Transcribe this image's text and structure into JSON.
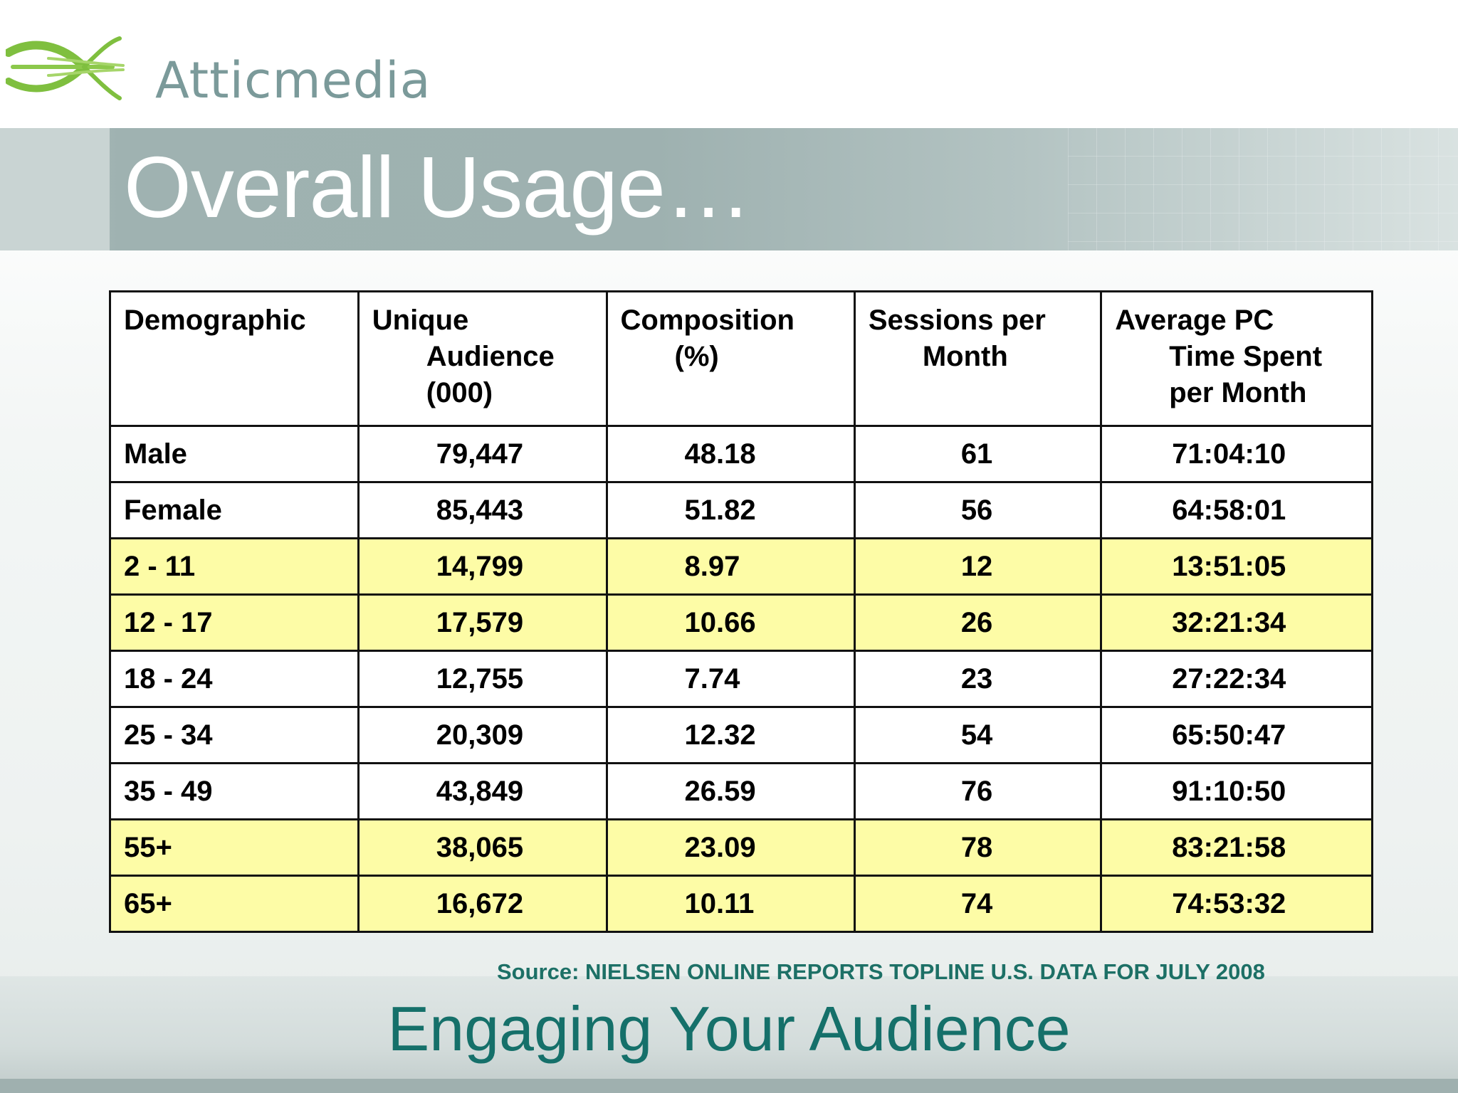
{
  "brand": {
    "name": "Atticmedia",
    "logo_color": "#7fbf3f",
    "text_color": "#7b9a9a"
  },
  "slide": {
    "title": "Overall Usage…",
    "footer": "Engaging Your Audience",
    "source": "Source: NIELSEN ONLINE REPORTS TOPLINE U.S. DATA FOR JULY 2008"
  },
  "table": {
    "headers": [
      [
        "Demographic"
      ],
      [
        "Unique",
        "Audience",
        "(000)"
      ],
      [
        "Composition",
        "(%)"
      ],
      [
        "Sessions per",
        "Month"
      ],
      [
        "Average PC",
        "Time Spent",
        "per Month"
      ]
    ],
    "highlight_color": "#fdfca6",
    "rows": [
      {
        "demographic": "Male",
        "audience": "79,447",
        "composition": "48.18",
        "sessions": "61",
        "time": "71:04:10",
        "highlight": false
      },
      {
        "demographic": "Female",
        "audience": "85,443",
        "composition": "51.82",
        "sessions": "56",
        "time": "64:58:01",
        "highlight": false
      },
      {
        "demographic": "2  -  11",
        "audience": "14,799",
        "composition": "8.97",
        "sessions": "12",
        "time": "13:51:05",
        "highlight": true
      },
      {
        "demographic": "12  -  17",
        "audience": "17,579",
        "composition": "10.66",
        "sessions": "26",
        "time": "32:21:34",
        "highlight": true
      },
      {
        "demographic": "18  -  24",
        "audience": "12,755",
        "composition": "7.74",
        "sessions": "23",
        "time": "27:22:34",
        "highlight": false
      },
      {
        "demographic": "25  -  34",
        "audience": "20,309",
        "composition": "12.32",
        "sessions": "54",
        "time": "65:50:47",
        "highlight": false
      },
      {
        "demographic": "35  -  49",
        "audience": "43,849",
        "composition": "26.59",
        "sessions": "76",
        "time": "91:10:50",
        "highlight": false
      },
      {
        "demographic": "55+",
        "audience": "38,065",
        "composition": "23.09",
        "sessions": "78",
        "time": "83:21:58",
        "highlight": true
      },
      {
        "demographic": "65+",
        "audience": "16,672",
        "composition": "10.11",
        "sessions": "74",
        "time": "74:53:32",
        "highlight": true
      }
    ]
  }
}
